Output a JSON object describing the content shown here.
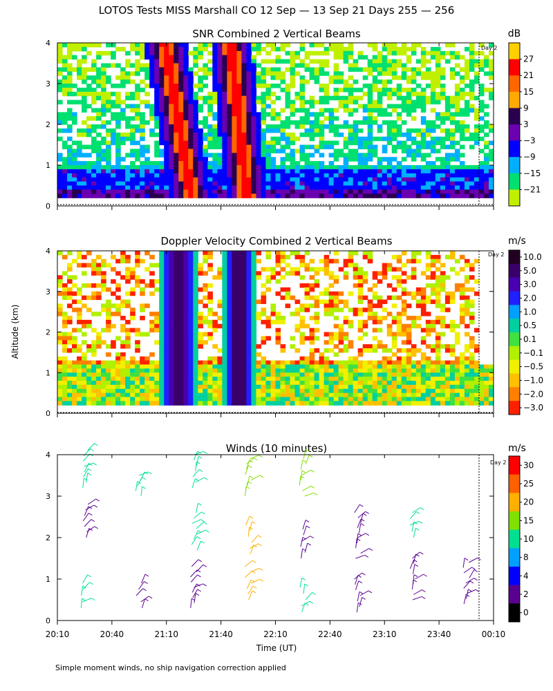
{
  "figure": {
    "title": "LOTOS Tests MISS Marshall CO  12 Sep — 13 Sep 21 Days 255 — 256",
    "ylabel": "Altitude (km)",
    "xlabel": "Time (UT)",
    "footnote": "Simple moment winds, no ship navigation correction applied",
    "day_marker_label": "Day 2"
  },
  "chart_data": [
    {
      "type": "heatmap",
      "title": "SNR Combined 2 Vertical Beams",
      "units": "dB",
      "ylim": [
        0,
        4
      ],
      "yticks": [
        "0",
        "1",
        "2",
        "3",
        "4"
      ],
      "colorbar": {
        "labels": [
          "27",
          "21",
          "15",
          "9",
          "3",
          "−3",
          "−9",
          "−15",
          "−21"
        ],
        "colors": [
          "#ff0000",
          "#ff6600",
          "#ffaa00",
          "#2a0050",
          "#6a00b0",
          "#0000ff",
          "#00b0ff",
          "#00e070",
          "#c0f000"
        ],
        "top_color": "#ffd000"
      },
      "field_features": [
        {
          "desc": "strong echo column",
          "time_center": "21:17",
          "alt_range": [
            0.2,
            4
          ],
          "max_db": 27
        },
        {
          "desc": "strong echo column",
          "time_center": "21:50",
          "alt_range": [
            0.2,
            4
          ],
          "max_db": 27
        },
        {
          "desc": "boundary layer echo",
          "alt_range": [
            0.2,
            0.9
          ],
          "db_range": [
            -9,
            9
          ]
        }
      ]
    },
    {
      "type": "heatmap",
      "title": "Doppler Velocity Combined 2 Vertical Beams",
      "units": "m/s",
      "ylim": [
        0,
        4
      ],
      "yticks": [
        "0",
        "1",
        "2",
        "3",
        "4"
      ],
      "colorbar": {
        "labels": [
          "10.0",
          "5.0",
          "3.0",
          "2.0",
          "1.0",
          "0.5",
          "0.1",
          "−0.1",
          "−0.5",
          "−1.0",
          "−2.0",
          "−3.0"
        ],
        "colors": [
          "#220022",
          "#3a006a",
          "#4a00b0",
          "#2020ff",
          "#00a0ff",
          "#00d0a0",
          "#40e040",
          "#b0f000",
          "#f0f000",
          "#ffc000",
          "#ff8000",
          "#ff2000"
        ]
      },
      "field_features": [
        {
          "desc": "strong downdraft column",
          "time_center": "21:17",
          "alt_range": [
            0.2,
            4
          ],
          "max_ms": 10.0
        },
        {
          "desc": "strong downdraft column",
          "time_center": "21:50",
          "alt_range": [
            0.2,
            4
          ],
          "max_ms": 10.0
        }
      ]
    },
    {
      "type": "scatter",
      "title": "Winds (10 minutes)",
      "units": "m/s",
      "ylim": [
        0,
        4
      ],
      "yticks": [
        "0",
        "1",
        "2",
        "3",
        "4"
      ],
      "xticks": [
        "20:10",
        "20:40",
        "21:10",
        "21:40",
        "22:10",
        "22:40",
        "23:10",
        "23:40",
        "00:10"
      ],
      "colorbar": {
        "labels": [
          "30",
          "25",
          "20",
          "15",
          "10",
          "8",
          "4",
          "2",
          "0"
        ],
        "colors": [
          "#ff0000",
          "#ff6000",
          "#ffb000",
          "#80e000",
          "#00e090",
          "#00a0ff",
          "#0000ff",
          "#5a0090",
          "#000000"
        ]
      },
      "profiles": [
        {
          "time": "20:25",
          "segments": [
            {
              "alt": [
                0.3,
                0.9
              ],
              "speed": 12
            },
            {
              "alt": [
                2.0,
                2.8
              ],
              "speed": 3
            },
            {
              "alt": [
                3.2,
                4.1
              ],
              "speed": 13
            }
          ]
        },
        {
          "time": "20:55",
          "segments": [
            {
              "alt": [
                0.3,
                0.9
              ],
              "speed": 3
            },
            {
              "alt": [
                3.0,
                3.5
              ],
              "speed": 14
            }
          ]
        },
        {
          "time": "21:25",
          "segments": [
            {
              "alt": [
                0.3,
                1.3
              ],
              "speed": 3
            },
            {
              "alt": [
                1.7,
                2.6
              ],
              "speed": 12
            },
            {
              "alt": [
                3.2,
                4.0
              ],
              "speed": 14
            }
          ]
        },
        {
          "time": "21:55",
          "segments": [
            {
              "alt": [
                0.5,
                1.3
              ],
              "speed": 20
            },
            {
              "alt": [
                1.6,
                2.3
              ],
              "speed": 20
            },
            {
              "alt": [
                3.0,
                3.9
              ],
              "speed": 16
            }
          ]
        },
        {
          "time": "22:25",
          "segments": [
            {
              "alt": [
                0.2,
                0.8
              ],
              "speed": 10
            },
            {
              "alt": [
                1.5,
                2.2
              ],
              "speed": 3
            },
            {
              "alt": [
                3.0,
                3.9
              ],
              "speed": 18
            }
          ]
        },
        {
          "time": "22:55",
          "segments": [
            {
              "alt": [
                0.2,
                1.0
              ],
              "speed": 3
            },
            {
              "alt": [
                1.5,
                2.6
              ],
              "speed": 3
            }
          ]
        },
        {
          "time": "23:25",
          "segments": [
            {
              "alt": [
                0.5,
                1.5
              ],
              "speed": 3
            },
            {
              "alt": [
                2.0,
                2.6
              ],
              "speed": 14
            }
          ]
        },
        {
          "time": "23:55",
          "segments": [
            {
              "alt": [
                0.4,
                1.4
              ],
              "speed": 3
            }
          ]
        }
      ]
    }
  ]
}
